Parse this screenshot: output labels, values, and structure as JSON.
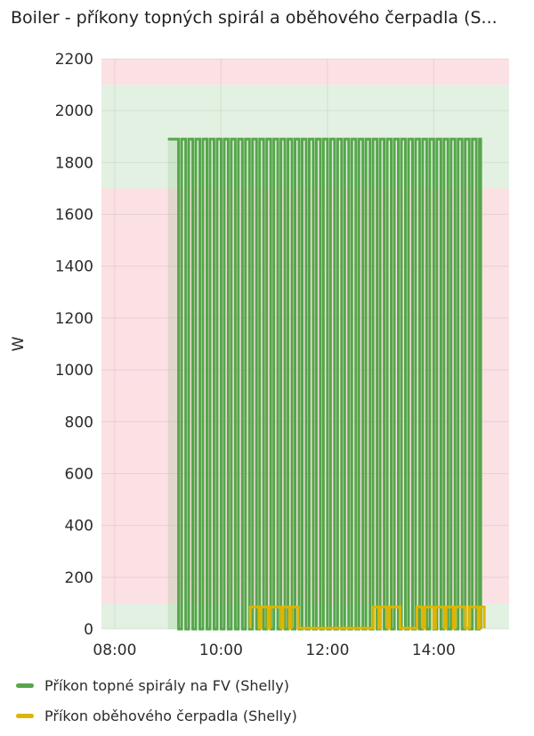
{
  "title": "Boiler - příkony topných spirál a oběhového čerpadla (S...",
  "chart_data": {
    "type": "line",
    "ylabel": "W",
    "xlabel": "",
    "ylim": [
      0,
      2200
    ],
    "xlim": [
      "07:45",
      "15:25"
    ],
    "yticks": [
      0,
      200,
      400,
      600,
      800,
      1000,
      1200,
      1400,
      1600,
      1800,
      2000,
      2200
    ],
    "xticks": [
      "08:00",
      "10:00",
      "12:00",
      "14:00"
    ],
    "grid": true,
    "legend_position": "bottom",
    "threshold_bands": [
      {
        "from": 0,
        "to": 100,
        "color": "#e3f1e2"
      },
      {
        "from": 100,
        "to": 1700,
        "color": "#fbe0e4"
      },
      {
        "from": 1700,
        "to": 2100,
        "color": "#e3f1e2"
      },
      {
        "from": 2100,
        "to": 2200,
        "color": "#fbe0e4"
      }
    ],
    "series": [
      {
        "name": "Příkon topné spirály na FV (Shelly)",
        "color": "#56a64b",
        "cycle": {
          "start": "09:00",
          "end": "14:53",
          "level_w": 1890,
          "off_w": 0,
          "first_on_until": "09:12",
          "on_minutes": 4.5,
          "period_minutes": 8.0
        }
      },
      {
        "name": "Příkon oběhového čerpadla (Shelly)",
        "color": "#e0b400",
        "segments": [
          {
            "start": "10:33",
            "end": "10:43",
            "value": 85
          },
          {
            "start": "10:45",
            "end": "10:53",
            "value": 85
          },
          {
            "start": "10:55",
            "end": "11:08",
            "value": 85
          },
          {
            "start": "11:10",
            "end": "11:17",
            "value": 85
          },
          {
            "start": "11:19",
            "end": "11:27",
            "value": 85
          },
          {
            "start": "12:52",
            "end": "12:58",
            "value": 85
          },
          {
            "start": "13:00",
            "end": "13:08",
            "value": 85
          },
          {
            "start": "13:10",
            "end": "13:22",
            "value": 85
          },
          {
            "start": "13:41",
            "end": "13:48",
            "value": 85
          },
          {
            "start": "13:50",
            "end": "14:00",
            "value": 85
          },
          {
            "start": "14:02",
            "end": "14:12",
            "value": 85
          },
          {
            "start": "14:14",
            "end": "14:22",
            "value": 85
          },
          {
            "start": "14:24",
            "end": "14:36",
            "value": 85
          },
          {
            "start": "14:40",
            "end": "14:50",
            "value": 85
          },
          {
            "start": "14:52",
            "end": "14:57",
            "value": 85
          }
        ]
      }
    ]
  }
}
